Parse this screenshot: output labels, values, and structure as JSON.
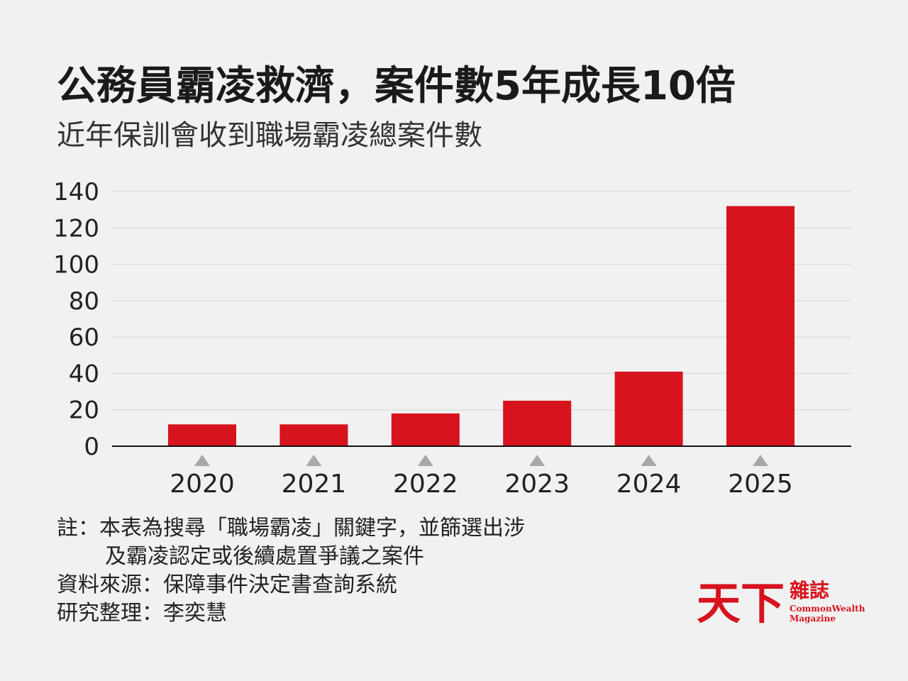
{
  "chart_data": {
    "type": "bar",
    "title": "公務員霸凌救濟，案件數5年成長10倍",
    "subtitle": "近年保訓會收到職場霸凌總案件數",
    "categories": [
      "2020",
      "2021",
      "2022",
      "2023",
      "2024",
      "2025"
    ],
    "values": [
      12,
      12,
      18,
      25,
      41,
      132
    ],
    "color": "#d7131e",
    "ylim": [
      0,
      140
    ],
    "yticks": [
      0,
      20,
      40,
      60,
      80,
      100,
      120,
      140
    ],
    "grid": true
  },
  "notes": [
    "註：本表為搜尋「職場霸凌」關鍵字，並篩選出涉",
    "及霸凌認定或後續處置爭議之案件",
    "資料來源：保障事件決定書查詢系統",
    "研究整理：李奕慧"
  ],
  "logo": {
    "main": "天下",
    "side": "雜誌",
    "english_1": "CommonWealth",
    "english_2": "Magazine"
  }
}
